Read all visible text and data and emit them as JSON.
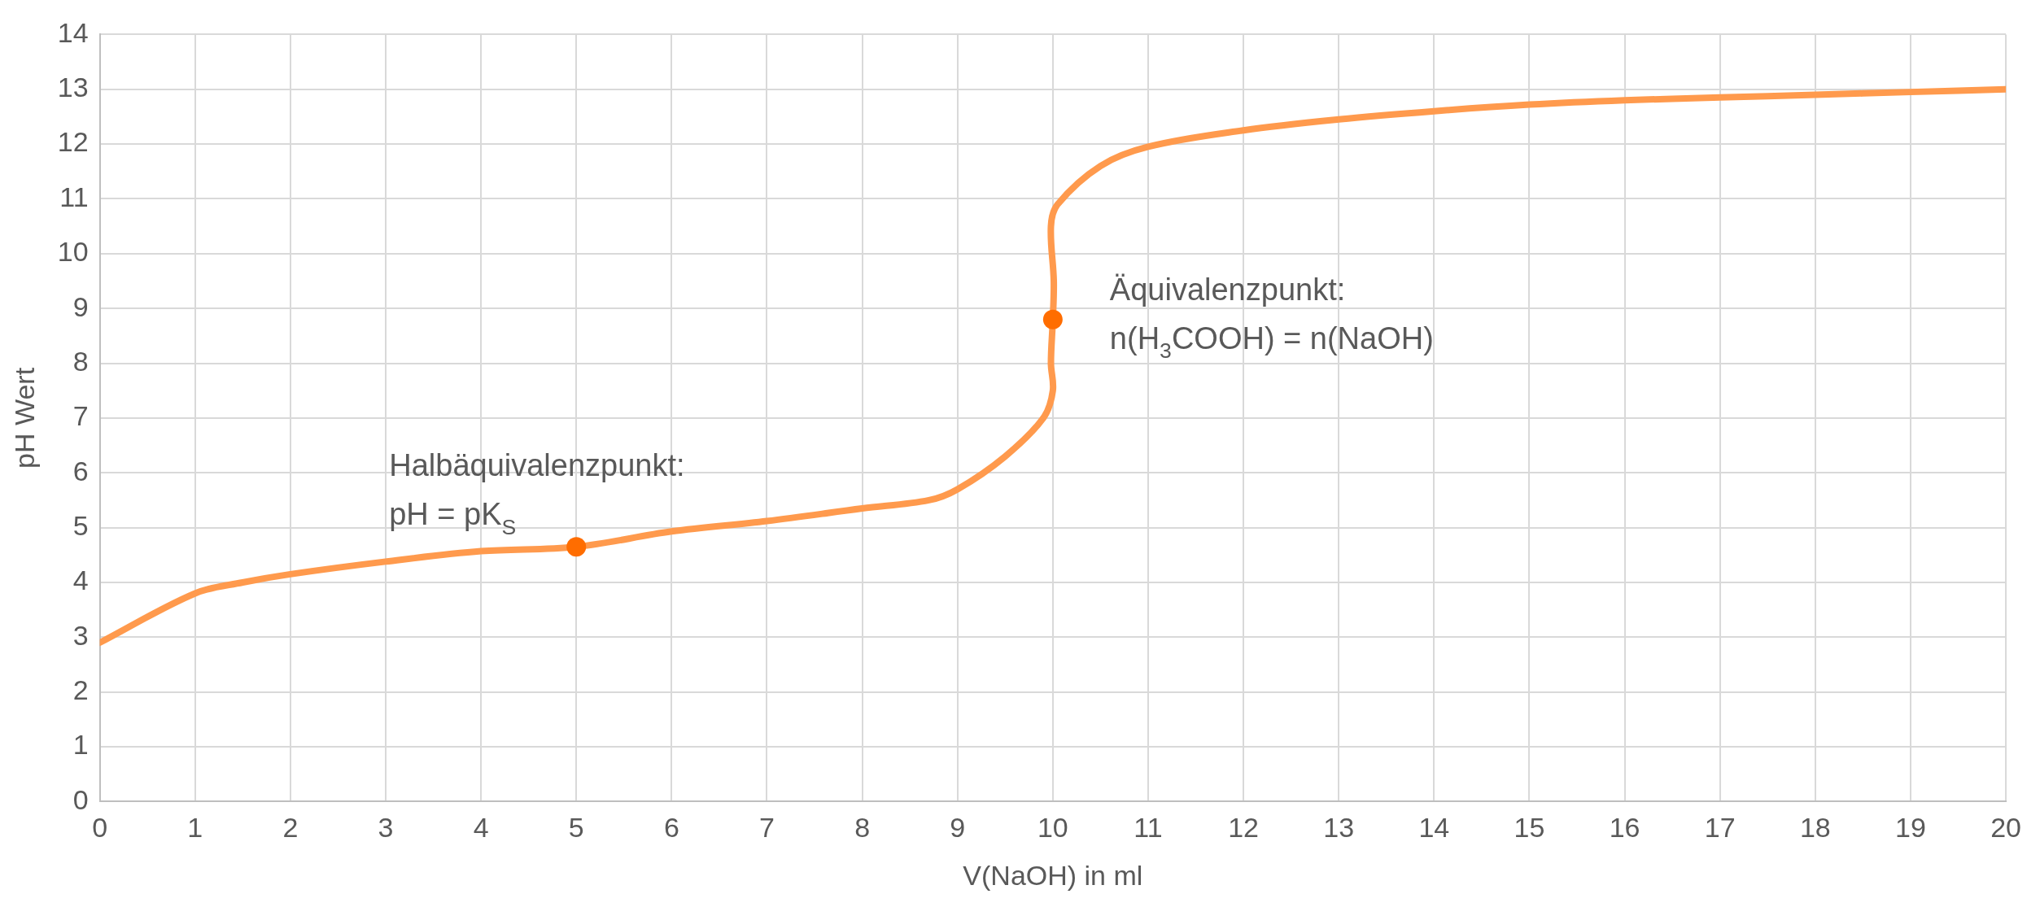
{
  "chart_data": {
    "type": "line",
    "xlabel": "V(NaOH) in ml",
    "ylabel": "pH Wert",
    "xlim": [
      0,
      20
    ],
    "xticks": [
      0,
      1,
      2,
      3,
      4,
      5,
      6,
      7,
      8,
      9,
      10,
      11,
      12,
      13,
      14,
      15,
      16,
      17,
      18,
      19,
      20
    ],
    "ylim": [
      0,
      14
    ],
    "yticks": [
      0,
      1,
      2,
      3,
      4,
      5,
      6,
      7,
      8,
      9,
      10,
      11,
      12,
      13,
      14
    ],
    "grid": true,
    "legend": false,
    "series": [
      {
        "type": "line",
        "color": "#ff9a4d",
        "marker": "none",
        "x": [
          0,
          1,
          1.5,
          2,
          3,
          4,
          5,
          6,
          7,
          8,
          8.7,
          9,
          9.5,
          9.9,
          10,
          9.98,
          10,
          10.01,
          9.98,
          10.05,
          10.5,
          11,
          12,
          13,
          14,
          15,
          16,
          17,
          18,
          19,
          20
        ],
        "values": [
          2.9,
          3.8,
          4.0,
          4.15,
          4.38,
          4.57,
          4.65,
          4.93,
          5.12,
          5.35,
          5.5,
          5.7,
          6.3,
          7.0,
          7.5,
          8.0,
          8.8,
          9.5,
          10.5,
          10.9,
          11.6,
          11.95,
          12.25,
          12.45,
          12.6,
          12.72,
          12.8,
          12.85,
          12.9,
          12.95,
          13.0
        ]
      },
      {
        "type": "scatter",
        "color": "#ff6d00",
        "marker": "circle",
        "x": [
          5,
          10
        ],
        "values": [
          4.65,
          8.8
        ]
      }
    ],
    "annotations": [
      {
        "text": "Halbäquivalenzpunkt:\npH = pK$_{S}$",
        "x": 5,
        "y": 4.65
      },
      {
        "text": "Äquivalenzpunkt:\nn(H$_{3}$COOH) = n(NaOH)",
        "x": 10,
        "y": 8.8
      }
    ]
  }
}
